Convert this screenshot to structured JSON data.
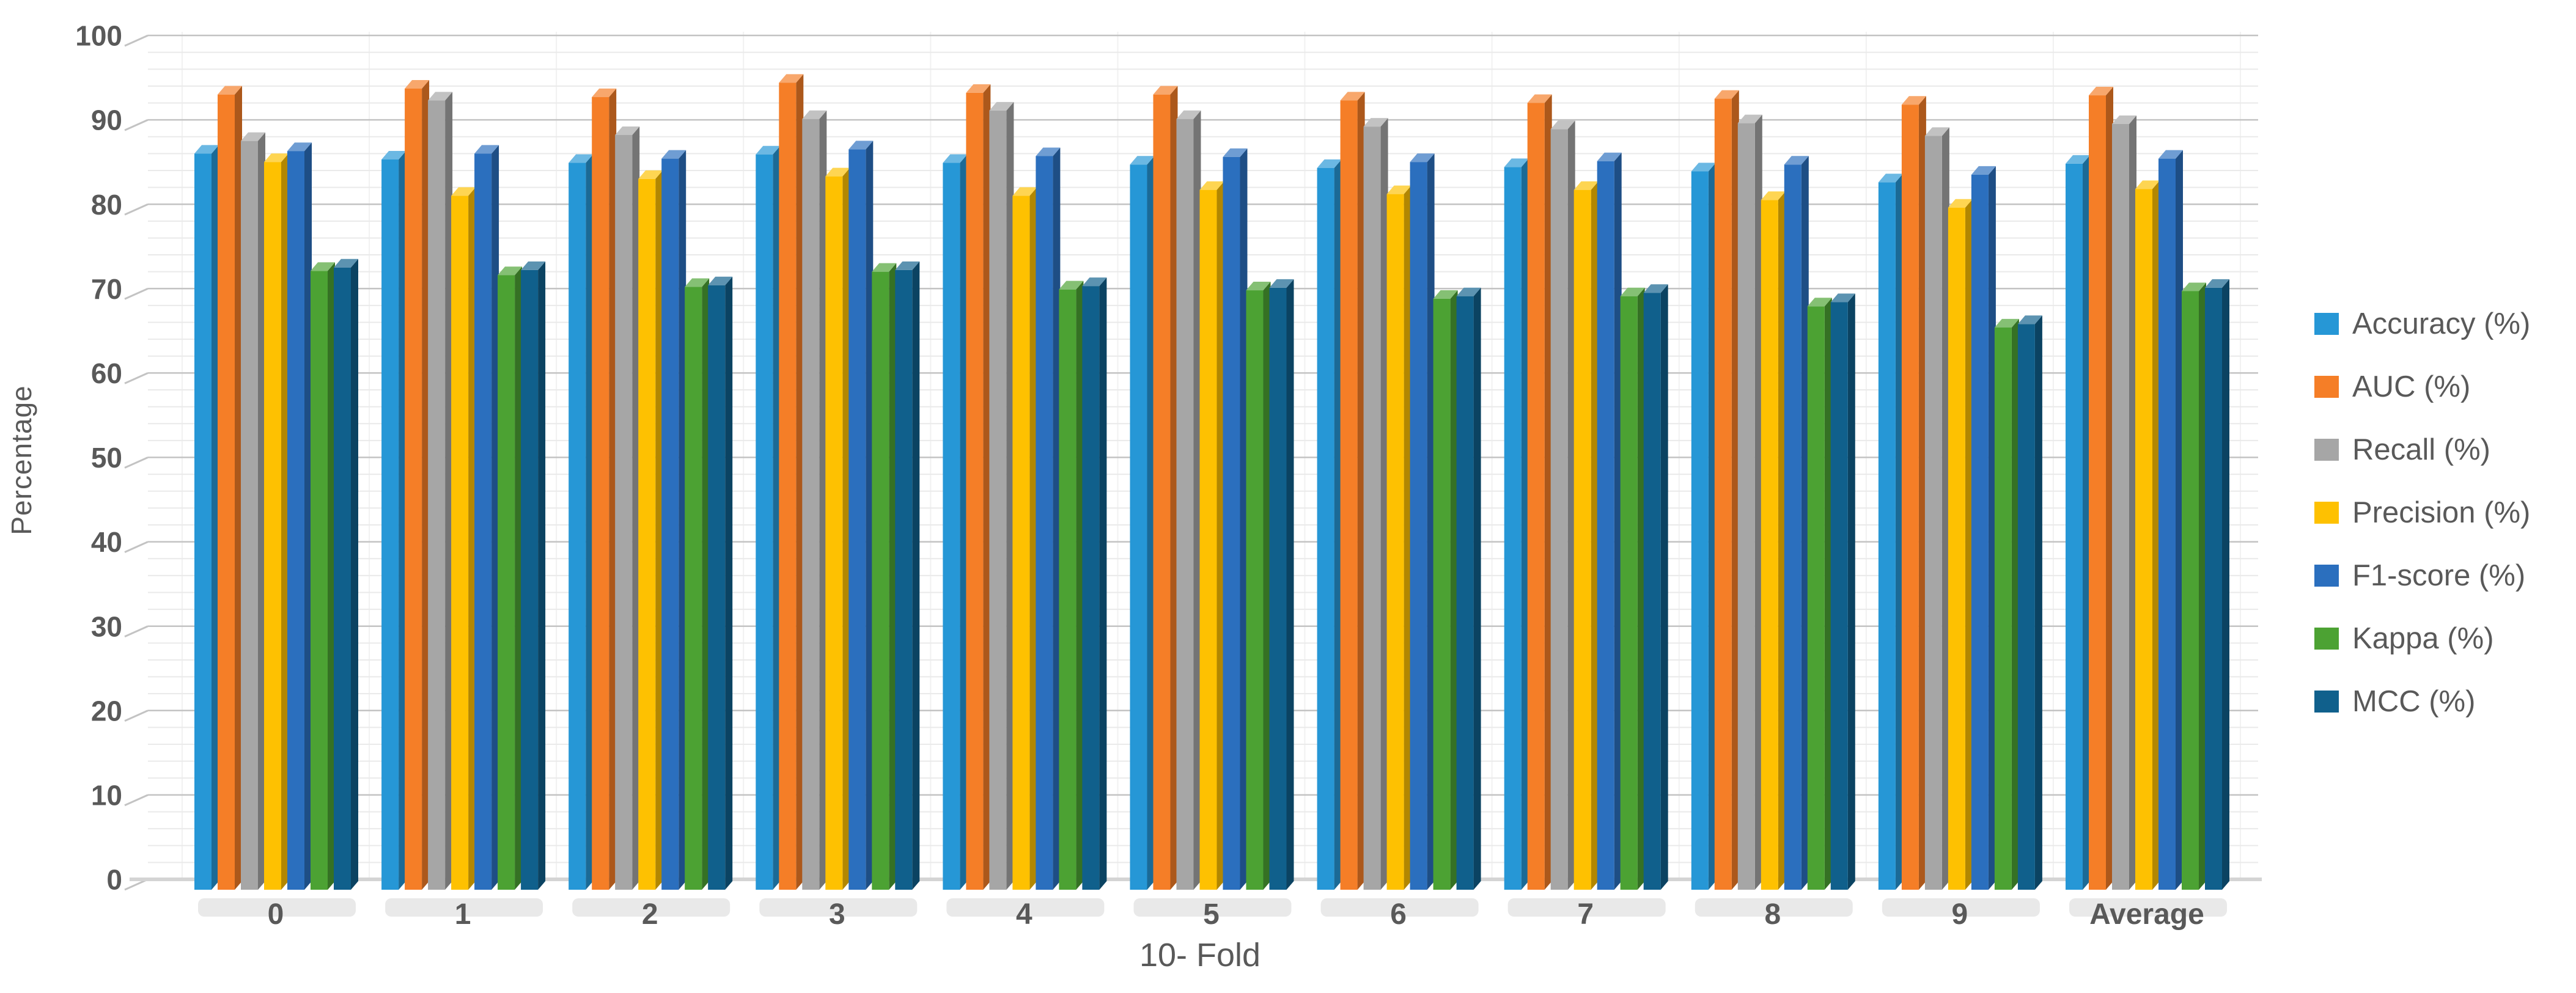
{
  "chart_data": {
    "type": "bar",
    "style": "3d-grouped-column",
    "title": "",
    "xlabel": "10- Fold",
    "ylabel": "Percentage",
    "ylim": [
      0,
      100
    ],
    "ytick_step": 10,
    "minor_gridline_step": 2,
    "grid": true,
    "legend_position": "right",
    "yticks": [
      "0",
      "10",
      "20",
      "30",
      "40",
      "50",
      "60",
      "70",
      "80",
      "90",
      "100"
    ],
    "categories": [
      "0",
      "1",
      "2",
      "3",
      "4",
      "5",
      "6",
      "7",
      "8",
      "9",
      "Average"
    ],
    "series": [
      {
        "name": "Accuracy (%)",
        "color": "#2697D6",
        "values": [
          86.0,
          85.3,
          84.9,
          85.9,
          84.9,
          84.7,
          84.3,
          84.4,
          83.9,
          82.6,
          84.8
        ]
      },
      {
        "name": "AUC (%)",
        "color": "#F57E27",
        "values": [
          93.0,
          93.7,
          92.7,
          94.4,
          93.2,
          93.0,
          92.3,
          92.0,
          92.5,
          91.8,
          92.9
        ]
      },
      {
        "name": "Recall (%)",
        "color": "#A6A6A6",
        "values": [
          87.5,
          92.3,
          88.2,
          90.1,
          91.1,
          90.1,
          89.2,
          88.9,
          89.6,
          88.1,
          89.5
        ]
      },
      {
        "name": "Precision (%)",
        "color": "#FEC101",
        "values": [
          85.0,
          81.0,
          83.0,
          83.3,
          81.0,
          81.7,
          81.2,
          81.7,
          80.5,
          79.6,
          81.8
        ]
      },
      {
        "name": "F1-score (%)",
        "color": "#2B6FBE",
        "values": [
          86.3,
          86.0,
          85.4,
          86.5,
          85.7,
          85.6,
          85.0,
          85.1,
          84.7,
          83.5,
          85.4
        ]
      },
      {
        "name": "Kappa (%)",
        "color": "#4CA233",
        "values": [
          72.1,
          71.6,
          70.2,
          72.0,
          69.9,
          69.8,
          68.8,
          69.1,
          67.9,
          65.4,
          69.7
        ]
      },
      {
        "name": "MCC (%)",
        "color": "#10608C",
        "values": [
          72.5,
          72.2,
          70.4,
          72.2,
          70.3,
          70.1,
          69.1,
          69.5,
          68.4,
          65.8,
          70.1
        ]
      }
    ],
    "text_color": "#595959",
    "major_gridline_color": "#C3C3C3",
    "minor_gridline_color": "#EAEAEA",
    "baseline_color": "#D4D4D4"
  }
}
